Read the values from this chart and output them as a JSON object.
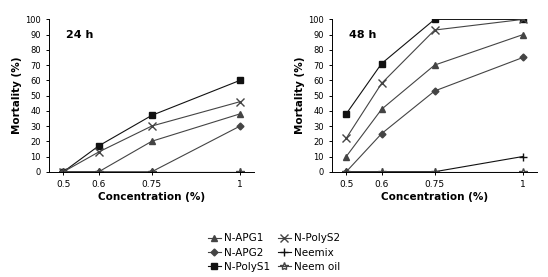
{
  "x": [
    0.5,
    0.6,
    0.75,
    1.0
  ],
  "panel1_title": "24 h",
  "panel2_title": "48 h",
  "ylabel": "Mortality (%)",
  "xlabel": "Concentration (%)",
  "ylim": [
    0,
    100
  ],
  "yticks": [
    0,
    10,
    20,
    30,
    40,
    50,
    60,
    70,
    80,
    90,
    100
  ],
  "xticks": [
    0.5,
    0.6,
    0.75,
    1.0
  ],
  "xtick_labels": [
    "0.5",
    "0.6",
    "0.75",
    "1"
  ],
  "series": [
    {
      "label": "N-APG1",
      "marker": "^",
      "color": "#444444",
      "day1": [
        0,
        0,
        20,
        38
      ],
      "day2": [
        10,
        41,
        70,
        90
      ]
    },
    {
      "label": "N-APG2",
      "marker": "D",
      "color": "#444444",
      "day1": [
        0,
        0,
        0,
        30
      ],
      "day2": [
        0,
        25,
        53,
        75
      ]
    },
    {
      "label": "N-PolyS1",
      "marker": "s",
      "color": "#111111",
      "day1": [
        0,
        17,
        37,
        60
      ],
      "day2": [
        38,
        71,
        100,
        100
      ]
    },
    {
      "label": "N-PolyS2",
      "marker": "x",
      "color": "#444444",
      "day1": [
        0,
        13,
        30,
        46
      ],
      "day2": [
        22,
        58,
        93,
        100
      ]
    },
    {
      "label": "Neemix",
      "marker": "+",
      "color": "#111111",
      "day1": [
        0,
        0,
        0,
        0
      ],
      "day2": [
        0,
        0,
        0,
        10
      ]
    },
    {
      "label": "Neem oil",
      "marker": "*",
      "color": "#444444",
      "day1": [
        0,
        0,
        0,
        0
      ],
      "day2": [
        0,
        0,
        0,
        0
      ]
    }
  ],
  "background_color": "#ffffff"
}
